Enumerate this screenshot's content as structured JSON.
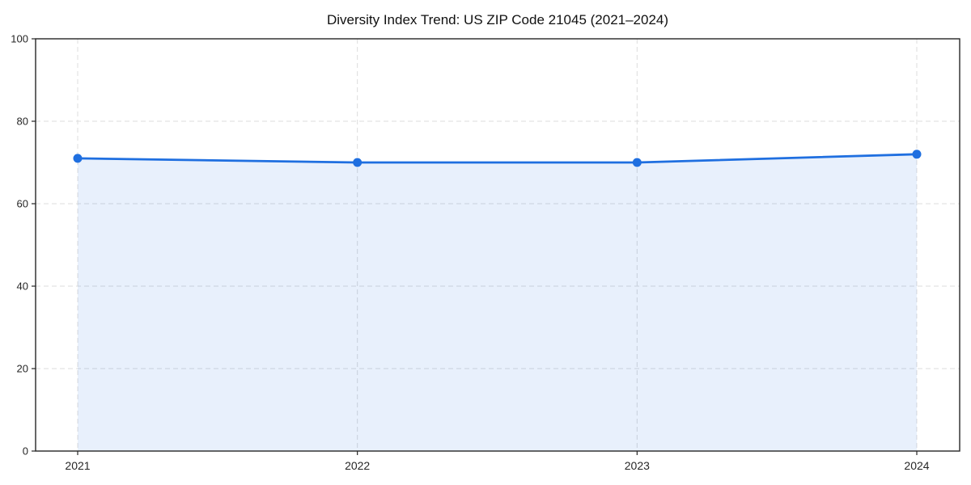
{
  "figure": {
    "background": "#ffffff"
  },
  "chart_data": {
    "type": "area",
    "title": "Diversity Index Trend: US ZIP Code 21045 (2021–2024)",
    "categories": [
      "2021",
      "2022",
      "2023",
      "2024"
    ],
    "series": [
      {
        "name": "Diversity Index",
        "values": [
          71,
          70,
          70,
          72
        ]
      }
    ],
    "xlabel": "",
    "ylabel": "",
    "ylim": [
      0,
      100
    ],
    "yticks": [
      0,
      20,
      40,
      60,
      80,
      100
    ],
    "grid": "dashed-horizontal-and-vertical",
    "legend": "none",
    "marker": "circle",
    "colors": {
      "line": "#1f6fe0",
      "marker": "#1f6fe0",
      "fill": "#1f6fe0",
      "fill_opacity": 0.1,
      "grid": "#dcdcdc",
      "axis": "#262626",
      "tick_label": "#262626",
      "title": "#111111"
    }
  }
}
